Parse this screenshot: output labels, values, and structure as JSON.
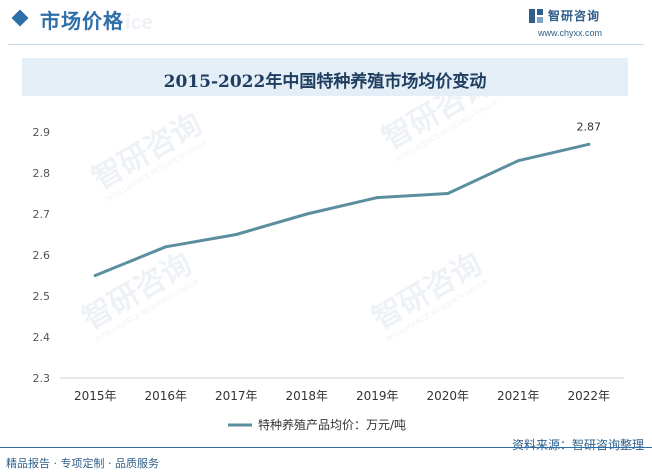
{
  "header": {
    "section_title": "市场价格",
    "section_title_ghost": "Price",
    "logo_name": "智研咨询",
    "logo_url": "www.chyxx.com",
    "brand_color": "#2f6fa8"
  },
  "watermark": {
    "text": "智研咨询",
    "subtext": "INTELLIGENCE RESEARCH GROUP"
  },
  "chart_data": {
    "type": "line",
    "title": "2015-2022年中国特种养殖市场均价变动",
    "categories": [
      "2015年",
      "2016年",
      "2017年",
      "2018年",
      "2019年",
      "2020年",
      "2021年",
      "2022年"
    ],
    "series": [
      {
        "name": "特种养殖产品均价：万元/吨",
        "values": [
          2.55,
          2.62,
          2.65,
          2.7,
          2.74,
          2.75,
          2.83,
          2.87
        ],
        "color": "#5b8fa0"
      }
    ],
    "data_labels": [
      {
        "index": 7,
        "text": "2.87"
      }
    ],
    "yticks": [
      "2.3",
      "2.4",
      "2.5",
      "2.6",
      "2.7",
      "2.8",
      "2.9"
    ],
    "ylim": [
      2.3,
      2.9
    ],
    "grid": false,
    "legend_position": "bottom"
  },
  "footer": {
    "source": "资料来源：智研咨询整理",
    "tagline": "精品报告 · 专项定制 · 品质服务"
  }
}
